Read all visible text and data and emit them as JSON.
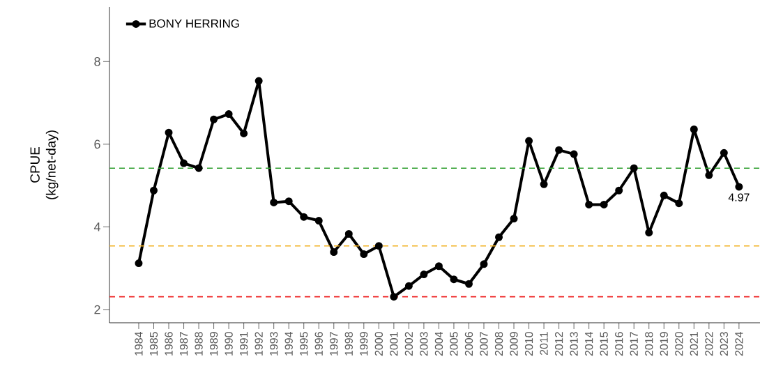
{
  "chart_data": {
    "type": "line",
    "ylabel": "CPUE (kg/net-day)",
    "categories": [
      "1984",
      "1985",
      "1986",
      "1987",
      "1988",
      "1989",
      "1990",
      "1991",
      "1992",
      "1993",
      "1994",
      "1995",
      "1996",
      "1997",
      "1998",
      "1999",
      "2000",
      "2001",
      "2002",
      "2003",
      "2004",
      "2005",
      "2006",
      "2007",
      "2008",
      "2009",
      "2010",
      "2011",
      "2012",
      "2013",
      "2014",
      "2015",
      "2016",
      "2017",
      "2018",
      "2019",
      "2020",
      "2021",
      "2022",
      "2023",
      "2024"
    ],
    "series": [
      {
        "name": "BONY HERRING",
        "color": "#000000",
        "values": [
          3.12,
          4.88,
          6.28,
          5.54,
          5.42,
          6.6,
          6.73,
          6.26,
          7.53,
          4.59,
          4.62,
          4.24,
          4.15,
          3.39,
          3.83,
          3.34,
          3.54,
          2.31,
          2.57,
          2.85,
          3.05,
          2.73,
          2.62,
          3.1,
          3.75,
          4.2,
          6.08,
          5.03,
          5.86,
          5.76,
          4.54,
          4.54,
          4.88,
          5.42,
          3.86,
          4.76,
          4.57,
          6.36,
          5.25,
          5.79,
          4.97
        ],
        "value_labels": [
          null,
          null,
          null,
          null,
          null,
          null,
          null,
          null,
          null,
          null,
          null,
          null,
          null,
          null,
          null,
          null,
          null,
          null,
          null,
          null,
          null,
          null,
          null,
          null,
          null,
          null,
          null,
          null,
          null,
          null,
          null,
          null,
          null,
          null,
          null,
          null,
          null,
          null,
          null,
          null,
          "4.97"
        ]
      }
    ],
    "ylim": [
      1.68,
      9.32
    ],
    "yticks": [
      2,
      4,
      6,
      8
    ],
    "ref_lines": [
      {
        "axis": "y",
        "value": 5.42,
        "color": "#2e9e2e",
        "line_style": "dashed"
      },
      {
        "axis": "y",
        "value": 3.54,
        "color": "#f2b01e",
        "line_style": "dashed"
      },
      {
        "axis": "y",
        "value": 2.31,
        "color": "#ee2222",
        "line_style": "dashed"
      }
    ],
    "grid": false,
    "legend": "top left",
    "marker": "circle",
    "line_style": "solid"
  }
}
